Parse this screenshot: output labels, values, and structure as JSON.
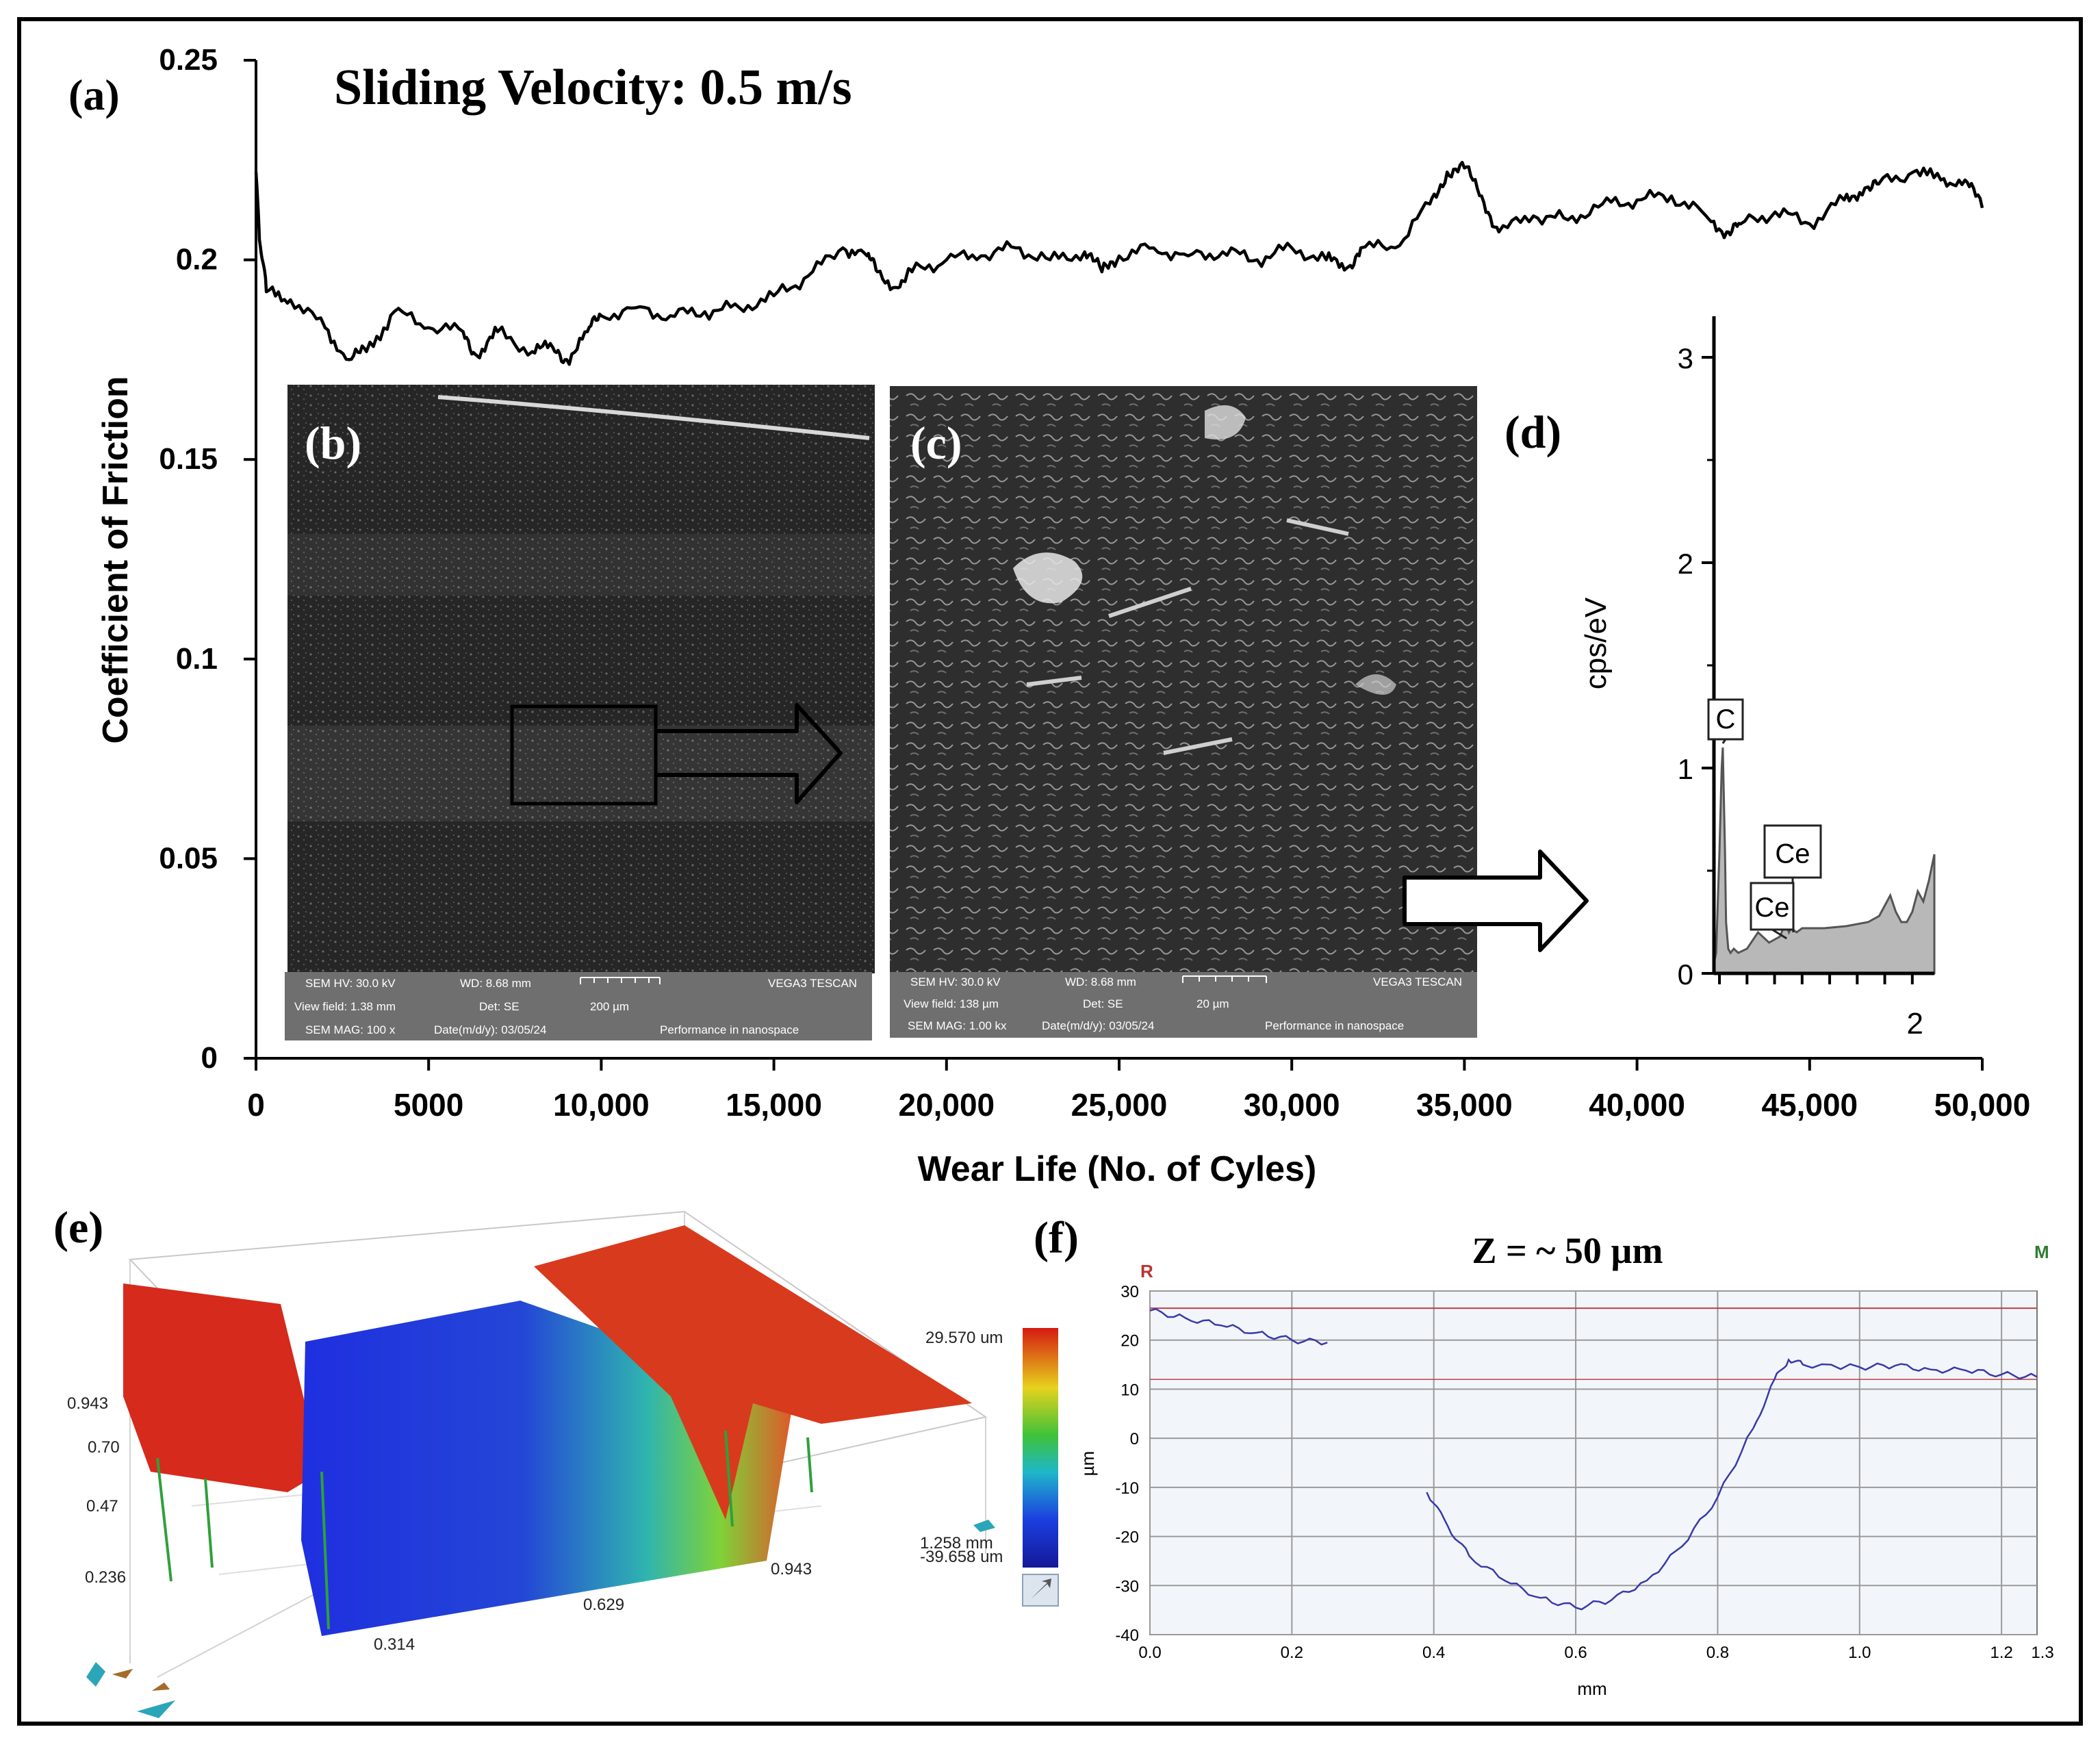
{
  "chart_data": [
    {
      "panel": "(a)",
      "type": "line",
      "title": "Sliding Velocity: 0.5 m/s",
      "xlabel": "Wear Life (No. of Cyles)",
      "ylabel": "Coefficient of Friction",
      "xlim": [
        0,
        50000
      ],
      "ylim": [
        0,
        0.25
      ],
      "xticks": [
        "0",
        "5000",
        "10,000",
        "15,000",
        "20,000",
        "25,000",
        "30,000",
        "35,000",
        "40,000",
        "45,000",
        "50,000"
      ],
      "yticks": [
        "0",
        "0.05",
        "0.1",
        "0.15",
        "0.2",
        "0.25"
      ],
      "series": [
        {
          "name": "COF",
          "x": [
            0,
            100,
            300,
            1000,
            2000,
            2700,
            3200,
            4000,
            5000,
            6000,
            6400,
            7000,
            8000,
            8600,
            9000,
            9600,
            10000,
            11000,
            12000,
            13000,
            14000,
            15000,
            16000,
            17000,
            17700,
            18000,
            18600,
            19000,
            20000,
            21000,
            22000,
            23000,
            24000,
            24500,
            25000,
            26000,
            27000,
            28000,
            29000,
            30000,
            31000,
            31600,
            32000,
            33000,
            34000,
            34500,
            35000,
            35500,
            36000,
            37000,
            38000,
            39000,
            40000,
            41000,
            42000,
            42600,
            43000,
            44000,
            45000,
            46000,
            46600,
            47000,
            48000,
            48800,
            49500,
            50000
          ],
          "y": [
            0.222,
            0.205,
            0.192,
            0.19,
            0.183,
            0.175,
            0.177,
            0.187,
            0.183,
            0.182,
            0.176,
            0.182,
            0.177,
            0.178,
            0.175,
            0.182,
            0.186,
            0.188,
            0.186,
            0.187,
            0.188,
            0.191,
            0.196,
            0.203,
            0.201,
            0.197,
            0.193,
            0.197,
            0.2,
            0.201,
            0.203,
            0.2,
            0.202,
            0.197,
            0.201,
            0.203,
            0.201,
            0.202,
            0.2,
            0.203,
            0.2,
            0.198,
            0.203,
            0.203,
            0.214,
            0.222,
            0.223,
            0.216,
            0.207,
            0.211,
            0.21,
            0.214,
            0.215,
            0.216,
            0.211,
            0.207,
            0.209,
            0.212,
            0.209,
            0.215,
            0.218,
            0.219,
            0.222,
            0.22,
            0.22,
            0.213
          ]
        }
      ]
    },
    {
      "panel": "(d)",
      "type": "area",
      "title": "",
      "xlabel": "",
      "ylabel": "cps/eV",
      "xlim": [
        0.2,
        2.2
      ],
      "ylim": [
        0,
        3.2
      ],
      "xticks": [
        "2"
      ],
      "yticks": [
        "0",
        "1",
        "2",
        "3"
      ],
      "annotations": [
        "C",
        "Ce",
        "Ce"
      ],
      "series": [
        {
          "name": "EDS spectrum",
          "x": [
            0.2,
            0.22,
            0.25,
            0.27,
            0.28,
            0.3,
            0.31,
            0.33,
            0.35,
            0.38,
            0.42,
            0.5,
            0.6,
            0.7,
            0.8,
            0.85,
            0.88,
            0.9,
            0.95,
            1.0,
            1.2,
            1.4,
            1.6,
            1.7,
            1.8,
            1.85,
            1.9,
            1.95,
            2.0,
            2.05,
            2.1,
            2.15,
            2.2
          ],
          "y": [
            0.05,
            0.1,
            0.6,
            1.0,
            1.1,
            0.6,
            0.25,
            0.12,
            0.1,
            0.12,
            0.1,
            0.12,
            0.2,
            0.15,
            0.18,
            0.25,
            0.2,
            0.22,
            0.2,
            0.22,
            0.22,
            0.23,
            0.25,
            0.28,
            0.38,
            0.3,
            0.25,
            0.25,
            0.3,
            0.4,
            0.35,
            0.45,
            0.58
          ]
        }
      ]
    },
    {
      "panel": "(e)",
      "type": "heatmap",
      "title": "",
      "xlabel": "",
      "ylabel": "",
      "colorbar_range": [
        "29.570 um",
        "-39.658 um"
      ],
      "axis_ticks_side": [
        "0.943",
        "0.70",
        "0.47",
        "0.236"
      ],
      "axis_ticks_front": [
        "0.314",
        "0.629",
        "0.943",
        "1.258 mm"
      ]
    },
    {
      "panel": "(f)",
      "type": "line",
      "title": "Z = ~ 50 µm",
      "xlabel": "mm",
      "ylabel": "µm",
      "xlim": [
        0,
        1.25
      ],
      "ylim": [
        -40,
        30
      ],
      "xticks": [
        "0.0",
        "0.2",
        "0.4",
        "0.6",
        "0.8",
        "1.0",
        "1.2",
        "1.3"
      ],
      "yticks": [
        "30",
        "20",
        "10",
        "0",
        "-10",
        "-20",
        "-30",
        "-40"
      ],
      "markers": [
        "R",
        "M"
      ],
      "series": [
        {
          "name": "Profile",
          "x": [
            0,
            0.05,
            0.1,
            0.15,
            0.2,
            0.25,
            0.39,
            0.42,
            0.45,
            0.5,
            0.55,
            0.6,
            0.65,
            0.7,
            0.75,
            0.8,
            0.85,
            0.88,
            0.9,
            0.92,
            1.0,
            1.05,
            1.1,
            1.15,
            1.2,
            1.25
          ],
          "y": [
            26,
            24.5,
            23,
            21.5,
            20,
            19.5,
            -11,
            -18,
            -24,
            -29,
            -32.5,
            -34.5,
            -33,
            -29,
            -22,
            -12,
            2,
            12,
            16,
            15,
            14.5,
            14.8,
            14,
            13.8,
            13,
            12.5
          ]
        }
      ]
    }
  ],
  "panels": {
    "a": "(a)",
    "b": "(b)",
    "c": "(c)",
    "d": "(d)",
    "e": "(e)",
    "f": "(f)"
  },
  "sem_b": {
    "hv": "SEM HV: 30.0 kV",
    "wd": "WD: 8.68 mm",
    "vendor": "VEGA3 TESCAN",
    "view_field": "View field: 1.38 mm",
    "det": "Det: SE",
    "scale": "200 µm",
    "mag": "SEM MAG: 100 x",
    "date": "Date(m/d/y): 03/05/24",
    "tagline": "Performance in nanospace"
  },
  "sem_c": {
    "hv": "SEM HV: 30.0 kV",
    "wd": "WD: 8.68 mm",
    "vendor": "VEGA3 TESCAN",
    "view_field": "View field: 138 µm",
    "det": "Det: SE",
    "scale": "20 µm",
    "mag": "SEM MAG: 1.00 kx",
    "date": "Date(m/d/y): 03/05/24",
    "tagline": "Performance in nanospace"
  },
  "colors": {
    "frame": "#000000",
    "cof_line": "#000000",
    "sem_bg": "#2e2e2e",
    "sem_bar": "#6f6f6f",
    "eds_fill": "#b8b8b8",
    "profile_line": "#3a3aa8",
    "profile_bg": "#f2f6fb",
    "profile_ref": "#c04040",
    "marker_r": "#c03030",
    "marker_m": "#2e7d32"
  }
}
